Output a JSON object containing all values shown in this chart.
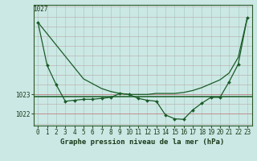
{
  "title": "Graphe pression niveau de la mer (hPa)",
  "bg_color": "#cce8e4",
  "plot_bg_color": "#cce8e4",
  "grid_color_v": "#a8ccc8",
  "grid_color_h": "#b8a8a8",
  "line_color": "#1a5c28",
  "ylim": [
    1021.4,
    1027.6
  ],
  "yticks": [
    1022,
    1023
  ],
  "ytick_extra": 1027,
  "xlim": [
    -0.5,
    23.5
  ],
  "xticks": [
    0,
    1,
    2,
    3,
    4,
    5,
    6,
    7,
    8,
    9,
    10,
    11,
    12,
    13,
    14,
    15,
    16,
    17,
    18,
    19,
    20,
    21,
    22,
    23
  ],
  "series1_x": [
    0,
    1,
    2,
    3,
    4,
    5,
    6,
    7,
    8,
    9,
    10,
    11,
    12,
    13,
    14,
    15,
    16,
    17,
    18,
    19,
    20,
    21,
    22,
    23
  ],
  "series1_y": [
    1026.7,
    1024.5,
    1023.5,
    1022.65,
    1022.7,
    1022.75,
    1022.75,
    1022.8,
    1022.85,
    1023.05,
    1023.0,
    1022.8,
    1022.7,
    1022.65,
    1021.95,
    1021.75,
    1021.72,
    1022.2,
    1022.55,
    1022.85,
    1022.85,
    1023.65,
    1024.55,
    1026.95
  ],
  "series2_y": 1022.9,
  "series3_y": [
    1026.7,
    1026.12,
    1025.54,
    1024.96,
    1024.38,
    1023.8,
    1023.55,
    1023.3,
    1023.15,
    1023.05,
    1023.0,
    1023.0,
    1023.0,
    1023.05,
    1023.05,
    1023.05,
    1023.1,
    1023.2,
    1023.35,
    1023.55,
    1023.75,
    1024.1,
    1024.9,
    1026.95
  ],
  "tick_fontsize": 5.5,
  "title_fontsize": 6.5,
  "marker": "D",
  "marker_size": 2.0
}
